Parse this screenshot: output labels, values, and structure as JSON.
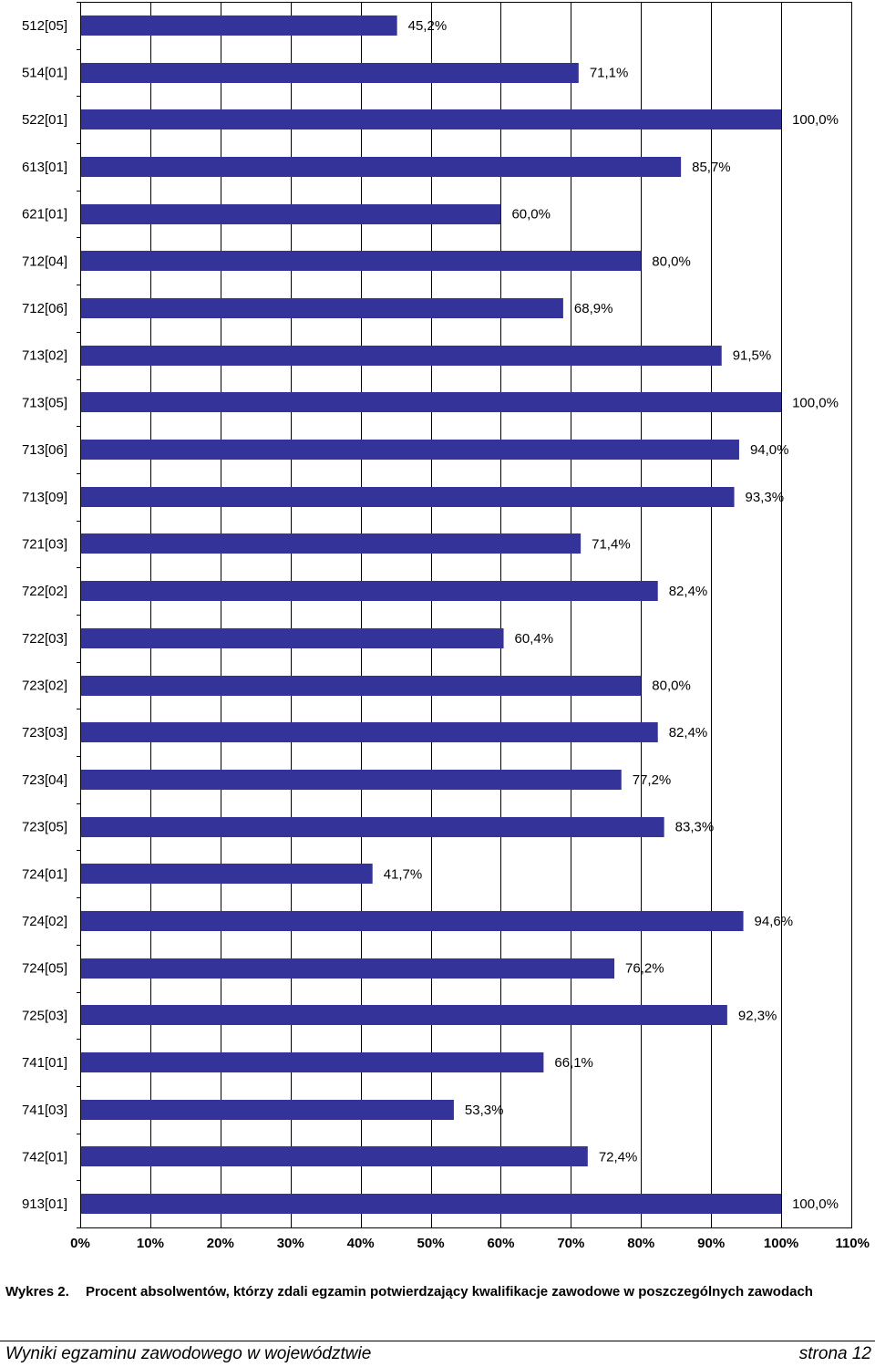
{
  "chart_data": {
    "type": "bar",
    "orientation": "horizontal",
    "categories": [
      "512[05]",
      "514[01]",
      "522[01]",
      "613[01]",
      "621[01]",
      "712[04]",
      "712[06]",
      "713[02]",
      "713[05]",
      "713[06]",
      "713[09]",
      "721[03]",
      "722[02]",
      "722[03]",
      "723[02]",
      "723[03]",
      "723[04]",
      "723[05]",
      "724[01]",
      "724[02]",
      "724[05]",
      "725[03]",
      "741[01]",
      "741[03]",
      "742[01]",
      "913[01]"
    ],
    "values": [
      45.2,
      71.1,
      100.0,
      85.7,
      60.0,
      80.0,
      68.9,
      91.5,
      100.0,
      94.0,
      93.3,
      71.4,
      82.4,
      60.4,
      80.0,
      82.4,
      77.2,
      83.3,
      41.7,
      94.6,
      76.2,
      92.3,
      66.1,
      53.3,
      72.4,
      100.0
    ],
    "data_labels": [
      "45,2%",
      "71,1%",
      "100,0%",
      "85,7%",
      "60,0%",
      "80,0%",
      "68,9%",
      "91,5%",
      "100,0%",
      "94,0%",
      "93,3%",
      "71,4%",
      "82,4%",
      "60,4%",
      "80,0%",
      "82,4%",
      "77,2%",
      "83,3%",
      "41,7%",
      "94,6%",
      "76,2%",
      "92,3%",
      "66,1%",
      "53,3%",
      "72,4%",
      "100,0%"
    ],
    "x_ticks": [
      "0%",
      "10%",
      "20%",
      "30%",
      "40%",
      "50%",
      "60%",
      "70%",
      "80%",
      "90%",
      "100%",
      "110%"
    ],
    "xlim": [
      0,
      110
    ],
    "grid": "vertical",
    "legend": "none",
    "bar_color": "#333399"
  },
  "caption": {
    "number": "Wykres 2.",
    "text": "Procent absolwentów, którzy zdali egzamin potwierdzający kwalifikacje zawodowe w poszczególnych zawodach"
  },
  "footer": {
    "left": "Wyniki egzaminu zawodowego w województwie",
    "right": "strona 12"
  }
}
